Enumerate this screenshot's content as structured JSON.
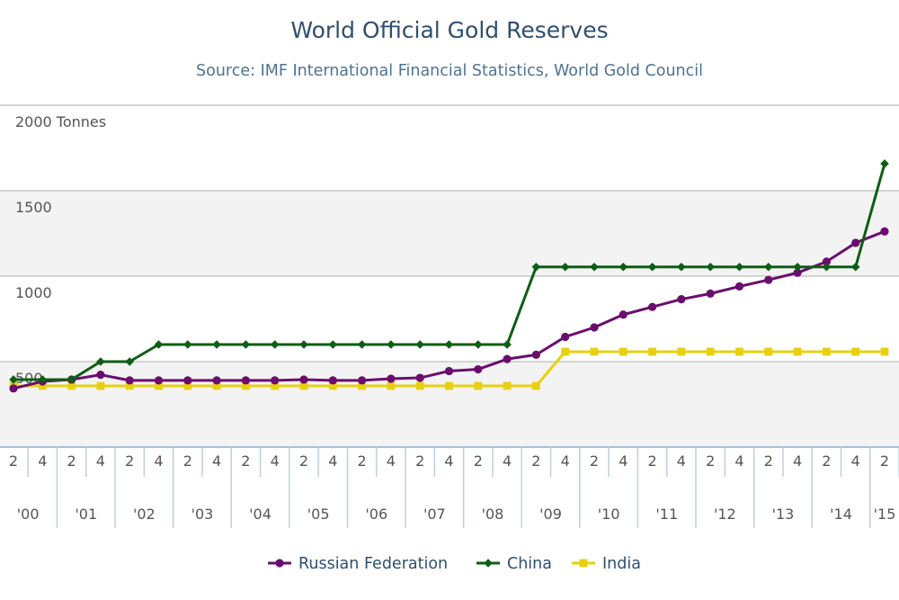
{
  "chart_data": {
    "type": "line",
    "title": "World Official Gold Reserves",
    "subtitle": "Source: IMF International Financial Statistics, World Gold Council",
    "y_unit": "Tonnes",
    "ylim": [
      0,
      2000
    ],
    "y_ticks": [
      {
        "value": 2000,
        "label": "2000 Tonnes"
      },
      {
        "value": 1500,
        "label": "1500"
      },
      {
        "value": 1000,
        "label": "1000"
      },
      {
        "value": 500,
        "label": "500"
      }
    ],
    "x_quarter_labels": [
      "2",
      "4",
      "2",
      "4",
      "2",
      "4",
      "2",
      "4",
      "2",
      "4",
      "2",
      "4",
      "2",
      "4",
      "2",
      "4",
      "2",
      "4",
      "2",
      "4",
      "2",
      "4",
      "2",
      "4",
      "2",
      "4",
      "2",
      "4",
      "2",
      "4",
      "2"
    ],
    "x_year_labels": [
      "'00",
      "'01",
      "'02",
      "'03",
      "'04",
      "'05",
      "'06",
      "'07",
      "'08",
      "'09",
      "'10",
      "'11",
      "'12",
      "'13",
      "'14",
      "'15"
    ],
    "grid": true,
    "legend_position": "bottom",
    "series": [
      {
        "name": "Russian Federation",
        "color": "#6a0d6f",
        "marker": "circle",
        "values": [
          343,
          384,
          395,
          423,
          390,
          390,
          390,
          390,
          390,
          390,
          395,
          390,
          390,
          400,
          405,
          445,
          455,
          515,
          540,
          645,
          700,
          775,
          820,
          865,
          898,
          940,
          978,
          1020,
          1085,
          1195,
          1262
        ]
      },
      {
        "name": "China",
        "color": "#0d5e14",
        "marker": "diamond",
        "values": [
          395,
          395,
          395,
          500,
          500,
          600,
          600,
          600,
          600,
          600,
          600,
          600,
          600,
          600,
          600,
          600,
          600,
          600,
          1054,
          1054,
          1054,
          1054,
          1054,
          1054,
          1054,
          1054,
          1054,
          1054,
          1054,
          1054,
          1658
        ]
      },
      {
        "name": "India",
        "color": "#e8d010",
        "marker": "square",
        "values": [
          358,
          358,
          358,
          358,
          358,
          358,
          358,
          358,
          358,
          358,
          358,
          358,
          358,
          358,
          358,
          358,
          358,
          358,
          358,
          558,
          558,
          558,
          558,
          558,
          558,
          558,
          558,
          558,
          558,
          558,
          558
        ]
      }
    ]
  }
}
